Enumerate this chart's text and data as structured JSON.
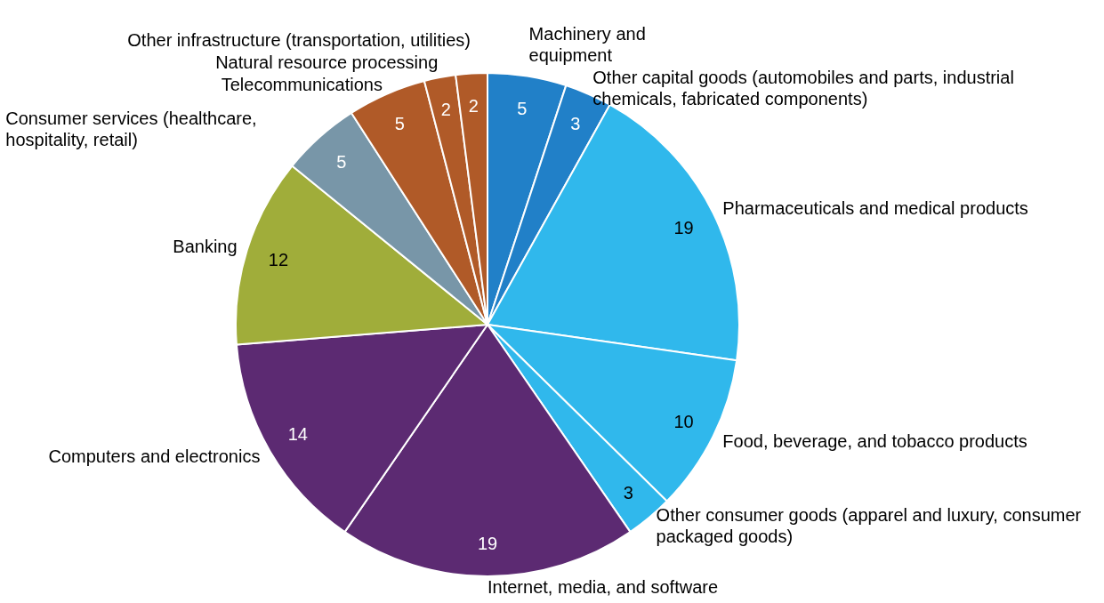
{
  "chart_data": {
    "type": "pie",
    "categories": [
      "Machinery and equipment",
      "Other capital goods (automobiles and parts, industrial chemicals, fabricated components)",
      "Pharmaceuticals and medical products",
      "Food, beverage, and tobacco products",
      "Other consumer goods (apparel and luxury, consumer packaged goods)",
      "Internet, media, and software",
      "Computers and electronics",
      "Banking",
      "Consumer services (healthcare, hospitality, retail)",
      "Telecommunications",
      "Natural resource processing",
      "Other infrastructure (transportation, utilities)"
    ],
    "values": [
      5,
      3,
      19,
      10,
      3,
      19,
      14,
      12,
      5,
      5,
      2,
      2
    ],
    "colors": [
      "#2180c8",
      "#2180c8",
      "#30b8ec",
      "#30b8ec",
      "#30b8ec",
      "#5c2a72",
      "#5c2a72",
      "#a0ad3a",
      "#7896a8",
      "#b05a28",
      "#b05a28",
      "#b05a28"
    ],
    "data_labels": true,
    "legend": false
  }
}
